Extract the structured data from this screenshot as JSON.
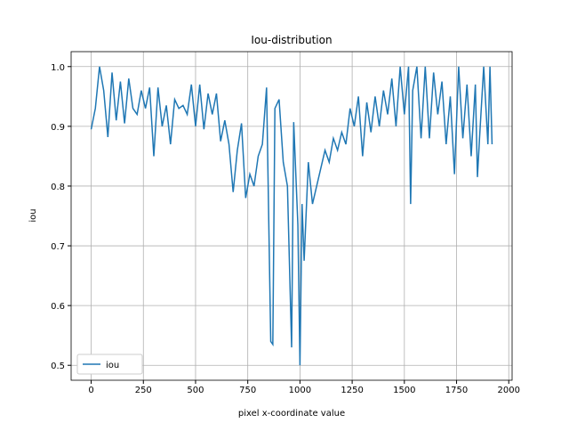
{
  "chart_data": {
    "type": "line",
    "title": "Iou-distribution",
    "x_label": "pixel x-coordinate value",
    "y_label": "iou",
    "x": [
      0,
      20,
      40,
      60,
      80,
      100,
      120,
      140,
      160,
      180,
      200,
      220,
      240,
      260,
      280,
      300,
      320,
      340,
      360,
      380,
      400,
      420,
      440,
      460,
      480,
      500,
      520,
      540,
      560,
      580,
      600,
      620,
      640,
      660,
      680,
      700,
      720,
      740,
      760,
      780,
      800,
      820,
      840,
      860,
      870,
      880,
      900,
      920,
      940,
      960,
      970,
      990,
      1000,
      1010,
      1020,
      1040,
      1060,
      1080,
      1100,
      1120,
      1140,
      1160,
      1180,
      1200,
      1220,
      1240,
      1260,
      1280,
      1300,
      1320,
      1340,
      1360,
      1380,
      1400,
      1420,
      1440,
      1460,
      1480,
      1500,
      1520,
      1530,
      1540,
      1560,
      1580,
      1600,
      1620,
      1640,
      1660,
      1680,
      1700,
      1720,
      1740,
      1760,
      1780,
      1800,
      1820,
      1840,
      1850,
      1860,
      1880,
      1900,
      1910,
      1920
    ],
    "series": [
      {
        "name": "iou",
        "color": "#1f77b4",
        "values": [
          0.895,
          0.93,
          1.0,
          0.96,
          0.882,
          0.99,
          0.91,
          0.975,
          0.905,
          0.98,
          0.93,
          0.92,
          0.96,
          0.93,
          0.965,
          0.85,
          0.965,
          0.9,
          0.935,
          0.87,
          0.945,
          0.93,
          0.935,
          0.92,
          0.97,
          0.9,
          0.97,
          0.895,
          0.955,
          0.92,
          0.955,
          0.875,
          0.91,
          0.87,
          0.79,
          0.86,
          0.905,
          0.78,
          0.82,
          0.8,
          0.85,
          0.87,
          0.965,
          0.54,
          0.535,
          0.93,
          0.945,
          0.84,
          0.8,
          0.53,
          0.907,
          0.735,
          0.5,
          0.77,
          0.675,
          0.84,
          0.77,
          0.8,
          0.83,
          0.86,
          0.84,
          0.88,
          0.86,
          0.89,
          0.87,
          0.93,
          0.9,
          0.95,
          0.85,
          0.94,
          0.89,
          0.95,
          0.9,
          0.96,
          0.92,
          0.98,
          0.9,
          1.0,
          0.92,
          1.0,
          0.77,
          0.96,
          1.0,
          0.88,
          1.0,
          0.88,
          0.99,
          0.92,
          0.975,
          0.87,
          0.95,
          0.82,
          1.0,
          0.88,
          0.97,
          0.85,
          0.97,
          0.815,
          0.88,
          1.0,
          0.87,
          1.0,
          0.87
        ]
      }
    ],
    "xlim": [
      -96,
      2016
    ],
    "ylim": [
      0.475,
      1.025
    ],
    "xticks": [
      0,
      250,
      500,
      750,
      1000,
      1250,
      1500,
      1750,
      2000
    ],
    "yticks": [
      {
        "value": 0.5,
        "label": "0.5"
      },
      {
        "value": 0.6,
        "label": "0.6"
      },
      {
        "value": 0.7,
        "label": "0.7"
      },
      {
        "value": 0.8,
        "label": "0.8"
      },
      {
        "value": 0.9,
        "label": "0.9"
      },
      {
        "value": 1.0,
        "label": "1.0"
      }
    ],
    "grid": true,
    "legend": "lower left"
  }
}
